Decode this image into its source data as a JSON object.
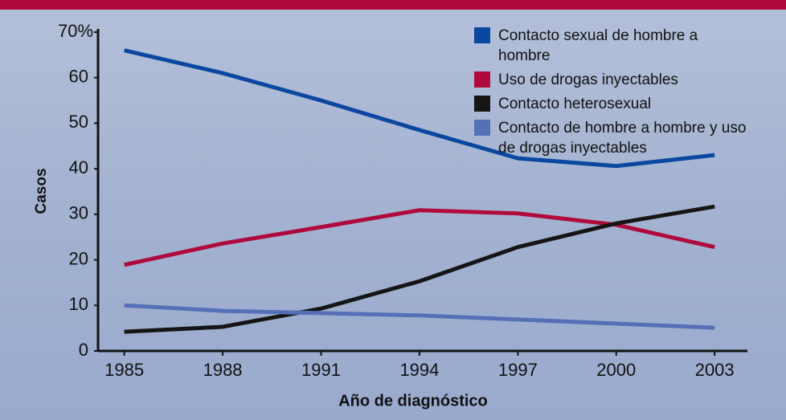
{
  "chart_data": {
    "type": "line",
    "x_label": "Año de diagnóstico",
    "y_label": "Casos",
    "x": [
      1985,
      1988,
      1991,
      1994,
      1997,
      2000,
      2003
    ],
    "xticks": [
      1985,
      1988,
      1991,
      1994,
      1997,
      2000,
      2003
    ],
    "xlim": [
      1984.2,
      2004
    ],
    "ylim": [
      0,
      70
    ],
    "yticks": [
      0,
      10,
      20,
      30,
      40,
      50,
      60,
      {
        "value": 70,
        "label": "70%"
      }
    ],
    "series": [
      {
        "name": "Contacto sexual de hombre a hombre",
        "color": "#0a47a0",
        "values": [
          66,
          61,
          55,
          48.5,
          42.3,
          40.6,
          43
        ]
      },
      {
        "name": "Uso de drogas inyectables",
        "color": "#b0093c",
        "values": [
          18.9,
          23.6,
          27.2,
          30.9,
          30.2,
          27.7,
          22.8
        ]
      },
      {
        "name": "Contacto heterosexual",
        "color": "#151515",
        "values": [
          4.2,
          5.3,
          9.3,
          15.3,
          22.8,
          28,
          31.7
        ]
      },
      {
        "name": "Contacto de hombre a hombre y uso de drogas inyectables",
        "color": "#5570b8",
        "values": [
          10,
          8.8,
          8.3,
          7.8,
          6.9,
          6,
          5.1
        ]
      }
    ]
  }
}
